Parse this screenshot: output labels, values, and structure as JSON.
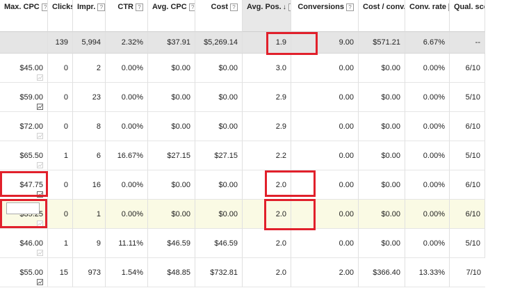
{
  "columns": [
    {
      "label": "Max. CPC",
      "help": "?"
    },
    {
      "label": "Clicks",
      "help": "?"
    },
    {
      "label": "Impr.",
      "help": "?"
    },
    {
      "label": "CTR",
      "help": "?"
    },
    {
      "label": "Avg. CPC",
      "help": "?"
    },
    {
      "label": "Cost",
      "help": "?"
    },
    {
      "label": "Avg. Pos.",
      "help": "?",
      "sort_arrow": "↓"
    },
    {
      "label": "Conversions",
      "help": "?"
    },
    {
      "label": "Cost / conv.",
      "help": "?"
    },
    {
      "label": "Conv. rate",
      "help": "?"
    },
    {
      "label": "Qual. score",
      "help": "?"
    }
  ],
  "totals": [
    "",
    "139",
    "5,994",
    "2.32%",
    "$37.91",
    "$5,269.14",
    "1.9",
    "9.00",
    "$571.21",
    "6.67%",
    "--"
  ],
  "rows": [
    {
      "max_cpc": "$45.00",
      "stats_icon": "faded",
      "values": [
        "0",
        "2",
        "0.00%",
        "$0.00",
        "$0.00",
        "3.0",
        "0.00",
        "$0.00",
        "0.00%",
        "6/10"
      ]
    },
    {
      "max_cpc": "$59.00",
      "stats_icon": "dark",
      "values": [
        "0",
        "23",
        "0.00%",
        "$0.00",
        "$0.00",
        "2.9",
        "0.00",
        "$0.00",
        "0.00%",
        "5/10"
      ]
    },
    {
      "max_cpc": "$72.00",
      "stats_icon": "faded",
      "values": [
        "0",
        "8",
        "0.00%",
        "$0.00",
        "$0.00",
        "2.9",
        "0.00",
        "$0.00",
        "0.00%",
        "6/10"
      ]
    },
    {
      "max_cpc": "$65.50",
      "stats_icon": "faded",
      "values": [
        "1",
        "6",
        "16.67%",
        "$27.15",
        "$27.15",
        "2.2",
        "0.00",
        "$0.00",
        "0.00%",
        "5/10"
      ]
    },
    {
      "max_cpc": "$47.75",
      "stats_icon": "dark",
      "values": [
        "0",
        "16",
        "0.00%",
        "$0.00",
        "$0.00",
        "2.0",
        "0.00",
        "$0.00",
        "0.00%",
        "6/10"
      ]
    },
    {
      "max_cpc": "$35.25",
      "stats_icon": "faded",
      "editing": true,
      "values": [
        "0",
        "1",
        "0.00%",
        "$0.00",
        "$0.00",
        "2.0",
        "0.00",
        "$0.00",
        "0.00%",
        "6/10"
      ]
    },
    {
      "max_cpc": "$46.00",
      "stats_icon": "faded",
      "values": [
        "1",
        "9",
        "11.11%",
        "$46.59",
        "$46.59",
        "2.0",
        "0.00",
        "$0.00",
        "0.00%",
        "5/10"
      ]
    },
    {
      "max_cpc": "$55.00",
      "stats_icon": "dark",
      "values": [
        "15",
        "973",
        "1.54%",
        "$48.85",
        "$732.81",
        "2.0",
        "2.00",
        "$366.40",
        "13.33%",
        "7/10"
      ]
    }
  ],
  "colors": {
    "highlight_row": "#fafae4",
    "annotation_red": "#e1202b",
    "sorted_header": "#e8e8e8"
  }
}
